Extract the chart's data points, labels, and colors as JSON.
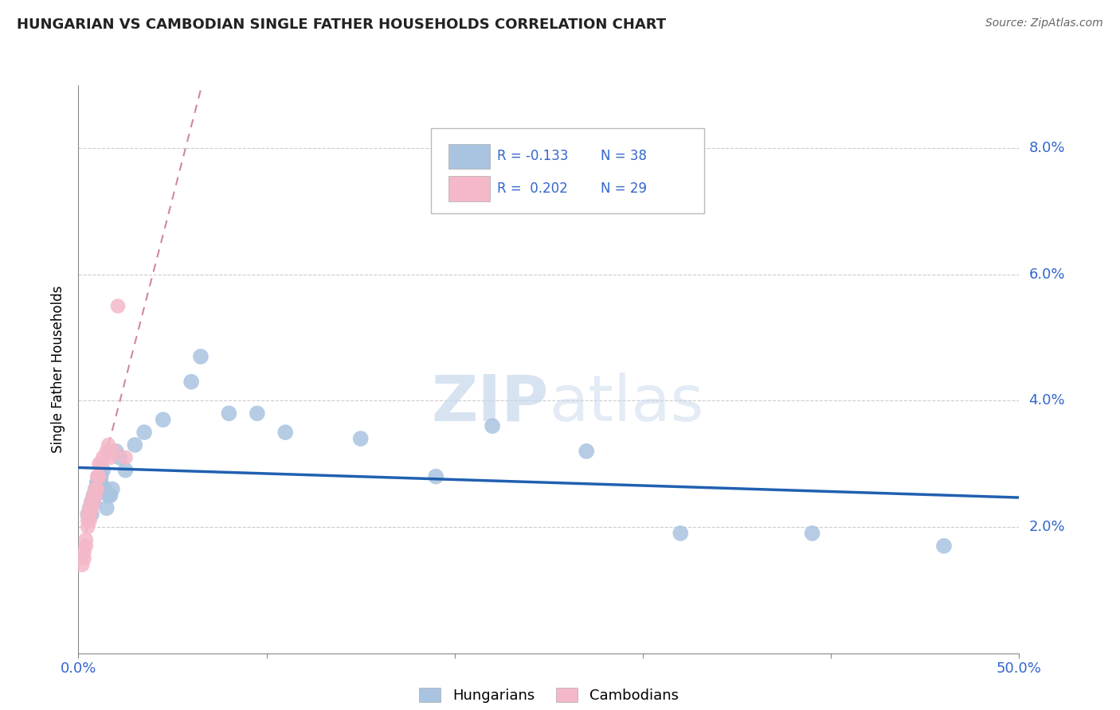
{
  "title": "HUNGARIAN VS CAMBODIAN SINGLE FATHER HOUSEHOLDS CORRELATION CHART",
  "source": "Source: ZipAtlas.com",
  "ylabel": "Single Father Households",
  "xlim": [
    0.0,
    0.5
  ],
  "ylim": [
    0.0,
    0.09
  ],
  "yticks": [
    0.02,
    0.04,
    0.06,
    0.08
  ],
  "ytick_labels": [
    "2.0%",
    "4.0%",
    "6.0%",
    "8.0%"
  ],
  "xticks": [
    0.0,
    0.1,
    0.2,
    0.3,
    0.4,
    0.5
  ],
  "xtick_labels": [
    "0.0%",
    "",
    "",
    "",
    "",
    "50.0%"
  ],
  "legend_r_hungarian": "R = -0.133",
  "legend_n_hungarian": "N = 38",
  "legend_r_cambodian": "R =  0.202",
  "legend_n_cambodian": "N = 29",
  "hungarian_color": "#a8c4e0",
  "cambodian_color": "#f4b8c8",
  "hungarian_line_color": "#2060b0",
  "cambodian_line_color": "#d08898",
  "watermark_color": "#c8d8ec",
  "hungarian_x": [
    0.005,
    0.006,
    0.007,
    0.007,
    0.008,
    0.008,
    0.009,
    0.009,
    0.01,
    0.01,
    0.01,
    0.011,
    0.012,
    0.012,
    0.013,
    0.014,
    0.015,
    0.016,
    0.017,
    0.018,
    0.02,
    0.022,
    0.025,
    0.03,
    0.035,
    0.045,
    0.06,
    0.065,
    0.08,
    0.095,
    0.11,
    0.15,
    0.19,
    0.22,
    0.27,
    0.32,
    0.39,
    0.46
  ],
  "hungarian_y": [
    0.022,
    0.023,
    0.022,
    0.024,
    0.024,
    0.025,
    0.025,
    0.026,
    0.026,
    0.027,
    0.027,
    0.028,
    0.027,
    0.028,
    0.029,
    0.026,
    0.023,
    0.025,
    0.025,
    0.026,
    0.032,
    0.031,
    0.029,
    0.033,
    0.035,
    0.037,
    0.043,
    0.047,
    0.038,
    0.038,
    0.035,
    0.034,
    0.028,
    0.036,
    0.032,
    0.019,
    0.019,
    0.017
  ],
  "cambodian_x": [
    0.002,
    0.003,
    0.003,
    0.004,
    0.004,
    0.005,
    0.005,
    0.005,
    0.006,
    0.006,
    0.006,
    0.007,
    0.007,
    0.008,
    0.008,
    0.009,
    0.009,
    0.01,
    0.01,
    0.011,
    0.011,
    0.012,
    0.013,
    0.015,
    0.016,
    0.017,
    0.019,
    0.021,
    0.025
  ],
  "cambodian_y": [
    0.014,
    0.015,
    0.016,
    0.017,
    0.018,
    0.02,
    0.021,
    0.022,
    0.021,
    0.022,
    0.023,
    0.023,
    0.024,
    0.024,
    0.025,
    0.025,
    0.026,
    0.026,
    0.028,
    0.028,
    0.03,
    0.03,
    0.031,
    0.032,
    0.033,
    0.031,
    0.032,
    0.055,
    0.031
  ]
}
